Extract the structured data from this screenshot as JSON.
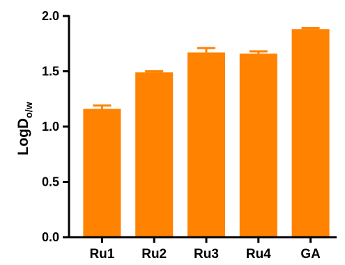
{
  "chart_data": {
    "type": "bar",
    "categories": [
      "Ru1",
      "Ru2",
      "Ru3",
      "Ru4",
      "GA"
    ],
    "values": [
      1.16,
      1.49,
      1.67,
      1.66,
      1.88
    ],
    "errors": [
      0.03,
      0.01,
      0.04,
      0.02,
      0.01
    ],
    "ylabel_main": "LogD",
    "ylabel_sub": "o/w",
    "ylim": [
      0,
      2.0
    ],
    "yticks": [
      "0.0",
      "0.5",
      "1.0",
      "1.5",
      "2.0"
    ],
    "ytick_values": [
      0,
      0.5,
      1.0,
      1.5,
      2.0
    ],
    "bar_color": "#FF8200",
    "grid": false
  }
}
